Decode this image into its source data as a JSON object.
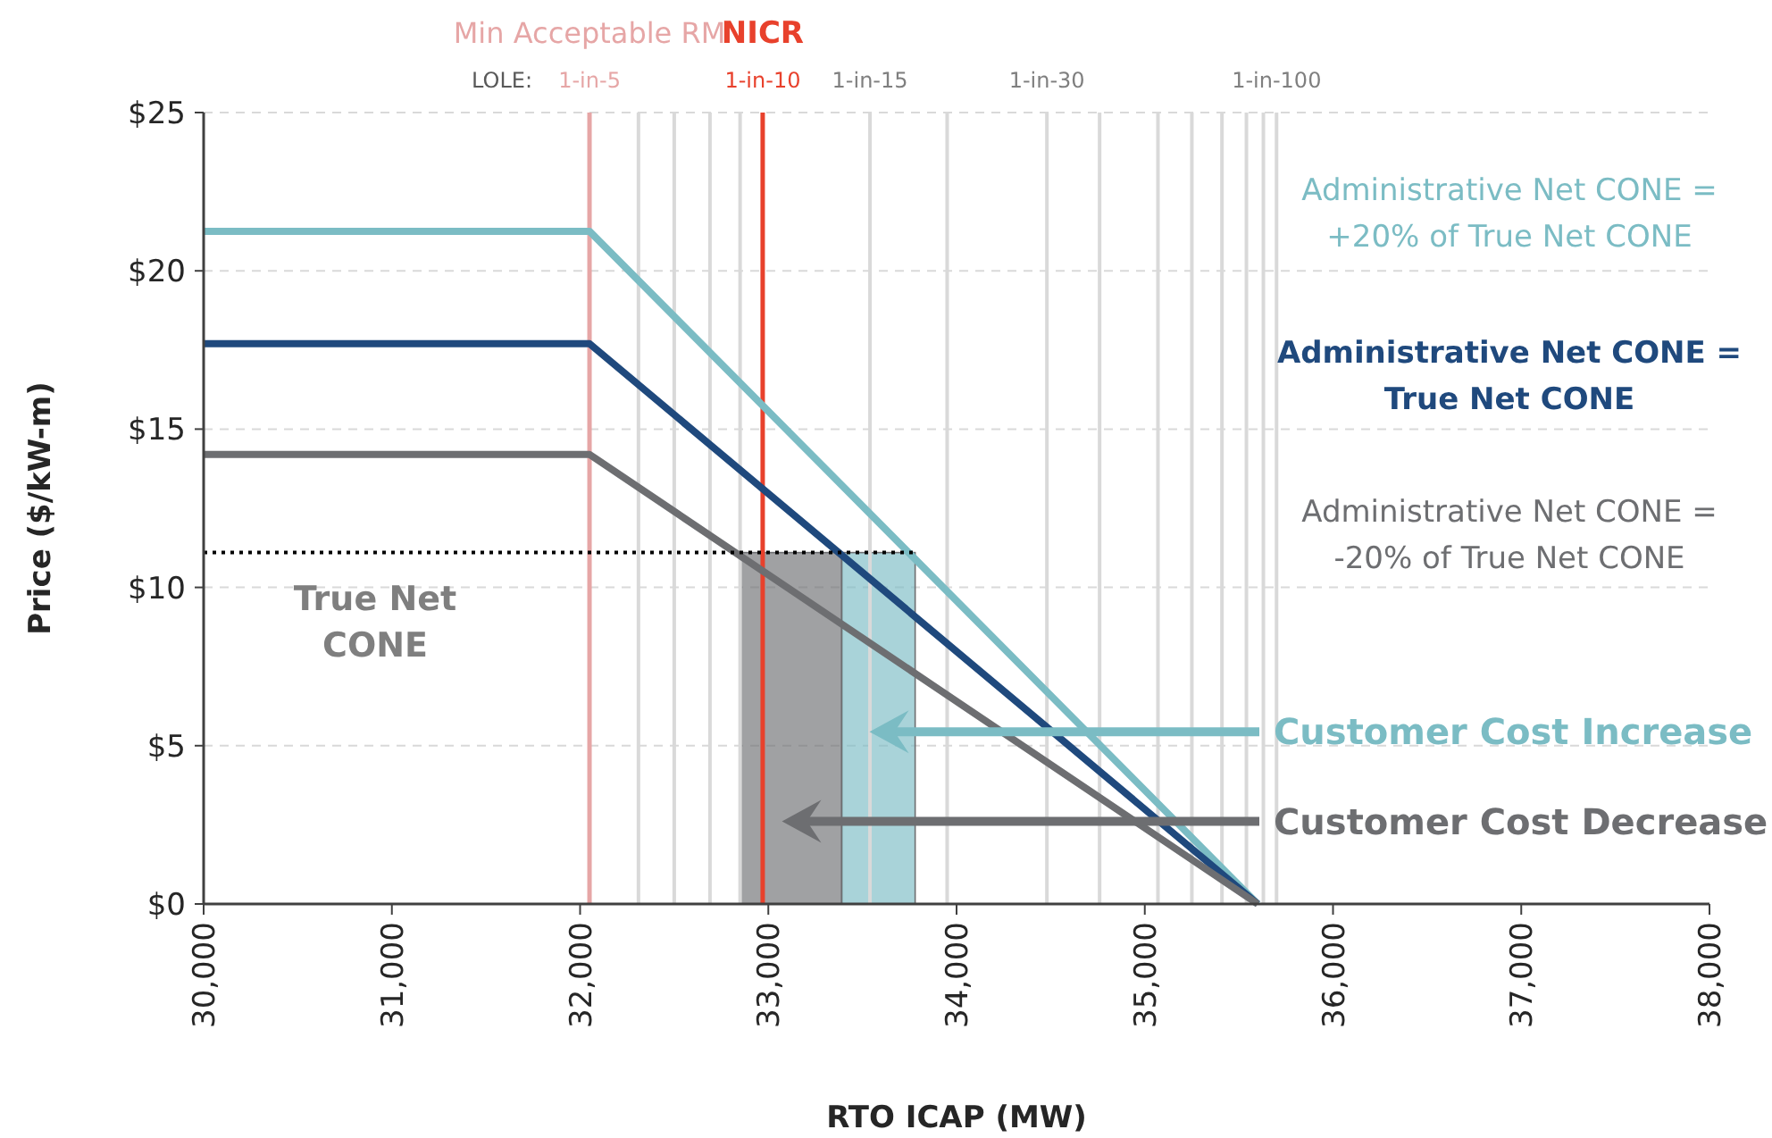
{
  "chart_data": {
    "type": "line",
    "xlabel": "RTO ICAP (MW)",
    "ylabel": "Price ($/kW-m)",
    "x": [
      30000,
      32050,
      35600
    ],
    "series": [
      {
        "name": "Administrative Net CONE = +20% of True Net CONE",
        "color": "#7bbcc4",
        "values": [
          21.25,
          21.25,
          0
        ]
      },
      {
        "name": "Administrative Net CONE = True Net CONE",
        "color": "#1f497d",
        "values": [
          17.7,
          17.7,
          0
        ]
      },
      {
        "name": "Administrative Net CONE = -20% of True Net CONE",
        "color": "#6d6e71",
        "values": [
          14.2,
          14.2,
          0
        ]
      }
    ],
    "xlim": [
      30000,
      38000
    ],
    "xticks": [
      {
        "value": 30000,
        "label": "30,000"
      },
      {
        "value": 31000,
        "label": "31,000"
      },
      {
        "value": 32000,
        "label": "32,000"
      },
      {
        "value": 33000,
        "label": "33,000"
      },
      {
        "value": 34000,
        "label": "34,000"
      },
      {
        "value": 35000,
        "label": "35,000"
      },
      {
        "value": 36000,
        "label": "36,000"
      },
      {
        "value": 37000,
        "label": "37,000"
      },
      {
        "value": 38000,
        "label": "38,000"
      }
    ],
    "ylim": [
      0,
      25
    ],
    "yticks": [
      {
        "value": 0,
        "label": "$0"
      },
      {
        "value": 5,
        "label": "$5"
      },
      {
        "value": 10,
        "label": "$10"
      },
      {
        "value": 15,
        "label": "$15"
      },
      {
        "value": 20,
        "label": "$20"
      },
      {
        "value": 25,
        "label": "$25"
      }
    ],
    "grid": "y",
    "marker": "none",
    "line_style": "solid",
    "ref_lines": [
      {
        "axis": "y",
        "value": 11.1,
        "label": "True Net CONE",
        "color": "#000000",
        "line_style": "dotted"
      },
      {
        "axis": "x",
        "value": 32050,
        "label": "1-in-5",
        "color": "#e6a6a6"
      },
      {
        "axis": "x",
        "value": 32310,
        "label": null,
        "color": "#d9d9d9"
      },
      {
        "axis": "x",
        "value": 32500,
        "label": null,
        "color": "#d9d9d9"
      },
      {
        "axis": "x",
        "value": 32690,
        "label": null,
        "color": "#d9d9d9"
      },
      {
        "axis": "x",
        "value": 32850,
        "label": null,
        "color": "#d9d9d9"
      },
      {
        "axis": "x",
        "value": 32970,
        "label": "1-in-10",
        "color": "#e8412c"
      },
      {
        "axis": "x",
        "value": 33540,
        "label": "1-in-15",
        "color": "#d9d9d9"
      },
      {
        "axis": "x",
        "value": 33950,
        "label": null,
        "color": "#d9d9d9"
      },
      {
        "axis": "x",
        "value": 34480,
        "label": "1-in-30",
        "color": "#d9d9d9"
      },
      {
        "axis": "x",
        "value": 34760,
        "label": null,
        "color": "#d9d9d9"
      },
      {
        "axis": "x",
        "value": 35070,
        "label": null,
        "color": "#d9d9d9"
      },
      {
        "axis": "x",
        "value": 35250,
        "label": null,
        "color": "#d9d9d9"
      },
      {
        "axis": "x",
        "value": 35410,
        "label": null,
        "color": "#d9d9d9"
      },
      {
        "axis": "x",
        "value": 35540,
        "label": null,
        "color": "#d9d9d9"
      },
      {
        "axis": "x",
        "value": 35630,
        "label": null,
        "color": "#d9d9d9"
      },
      {
        "axis": "x",
        "value": 35700,
        "label": "1-in-100",
        "color": "#d9d9d9"
      }
    ],
    "bands": [
      {
        "axis": "x",
        "from": 32850,
        "to": 33390,
        "label": "Customer Cost Decrease",
        "color": "#6d6e71"
      },
      {
        "axis": "x",
        "from": 33390,
        "to": 33780,
        "label": "Customer Cost Increase",
        "color": "#7bbcc4"
      }
    ],
    "annotations": [
      "LOLE:",
      "Min Acceptable RM",
      "NICR"
    ]
  }
}
